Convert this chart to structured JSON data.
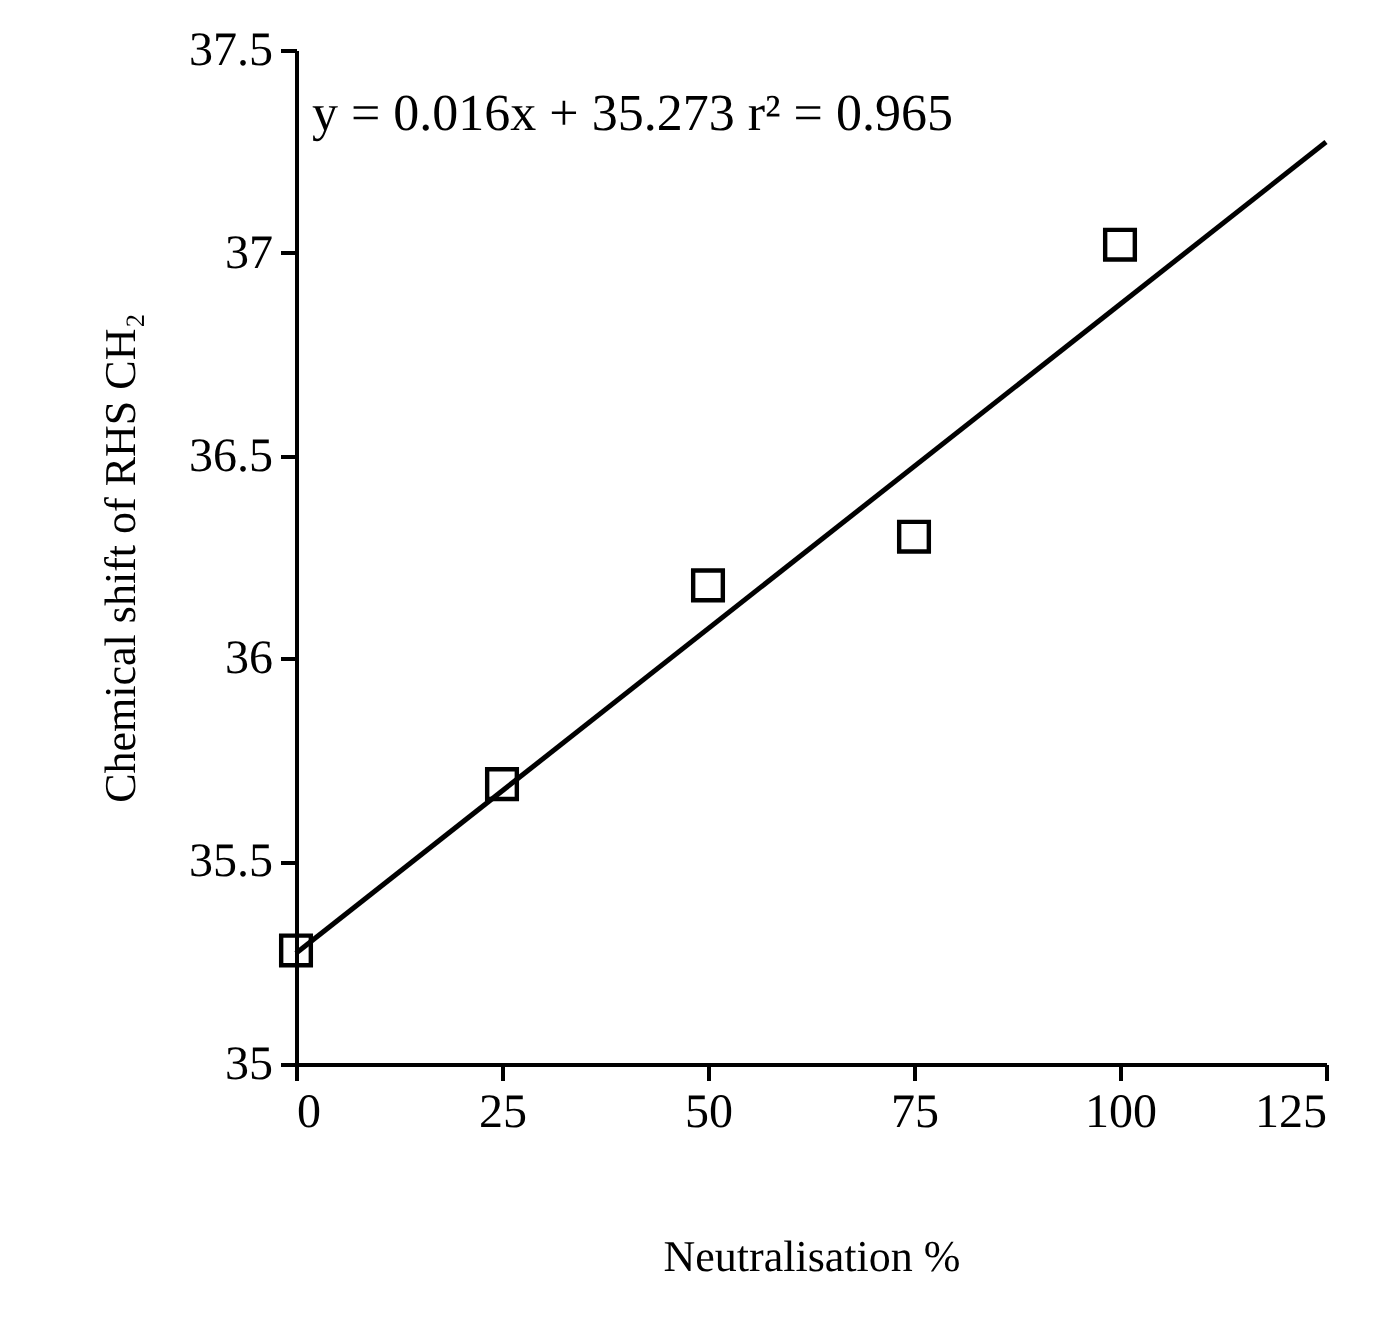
{
  "chart_data": {
    "type": "scatter",
    "xlabel": "Neutralisation %",
    "ylabel": "Chemical shift of RHS CH₂",
    "annotations": [
      "y = 0.016x + 35.273   r² = 0.965"
    ],
    "x": [
      0,
      25,
      50,
      75,
      100
    ],
    "series": [
      {
        "color": "#000000",
        "values": [
          35.28,
          35.69,
          36.18,
          36.3,
          37.02
        ]
      },
      {
        "type": "line",
        "marker": "none",
        "color": "#000000",
        "x": [
          0,
          125
        ],
        "values": [
          35.273,
          37.273
        ]
      }
    ],
    "marker": "square",
    "grid": false,
    "xlim": [
      0,
      125
    ],
    "xticks": [
      0,
      25,
      50,
      75,
      100,
      125
    ],
    "ylim": [
      35,
      37.5
    ],
    "yticks": [
      35,
      35.5,
      36,
      36.5,
      37,
      37.5
    ]
  }
}
